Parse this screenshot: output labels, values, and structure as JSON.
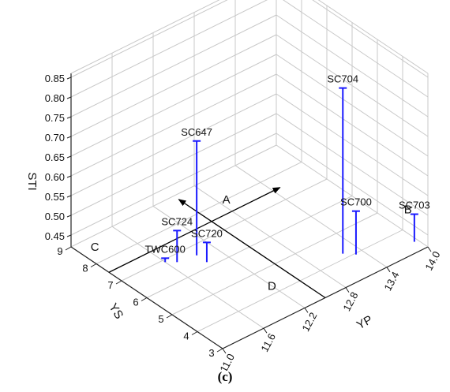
{
  "caption": "(c)",
  "chart_data": {
    "type": "scatter",
    "subtype": "3d-stem",
    "xlabel": "YP",
    "ylabel": "YS",
    "zlabel": "STI",
    "x_ticks": [
      "11.0",
      "11.6",
      "12.2",
      "12.8",
      "13.4",
      "14.0"
    ],
    "y_ticks": [
      "3",
      "4",
      "5",
      "6",
      "7",
      "8",
      "9"
    ],
    "z_ticks": [
      "0.45",
      "0.50",
      "0.55",
      "0.60",
      "0.65",
      "0.70",
      "0.75",
      "0.80",
      "0.85"
    ],
    "xlim": [
      11.0,
      14.0
    ],
    "ylim": [
      3,
      9
    ],
    "zlim": [
      0.42,
      0.86
    ],
    "grid": true,
    "stem_color": "#1a1aff",
    "points": [
      {
        "label": "SC704",
        "x": 13.2,
        "y": 4.2,
        "z": 0.84
      },
      {
        "label": "SC647",
        "x": 11.95,
        "y": 6.6,
        "z": 0.71
      },
      {
        "label": "SC700",
        "x": 13.3,
        "y": 3.95,
        "z": 0.53
      },
      {
        "label": "SC724",
        "x": 11.7,
        "y": 6.7,
        "z": 0.5
      },
      {
        "label": "SC720",
        "x": 11.95,
        "y": 6.2,
        "z": 0.47
      },
      {
        "label": "TWC600",
        "x": 11.6,
        "y": 6.9,
        "z": 0.43
      },
      {
        "label": "SC703",
        "x": 13.95,
        "y": 3.4,
        "z": 0.49
      }
    ],
    "regions": [
      "A",
      "B",
      "C",
      "D"
    ]
  }
}
